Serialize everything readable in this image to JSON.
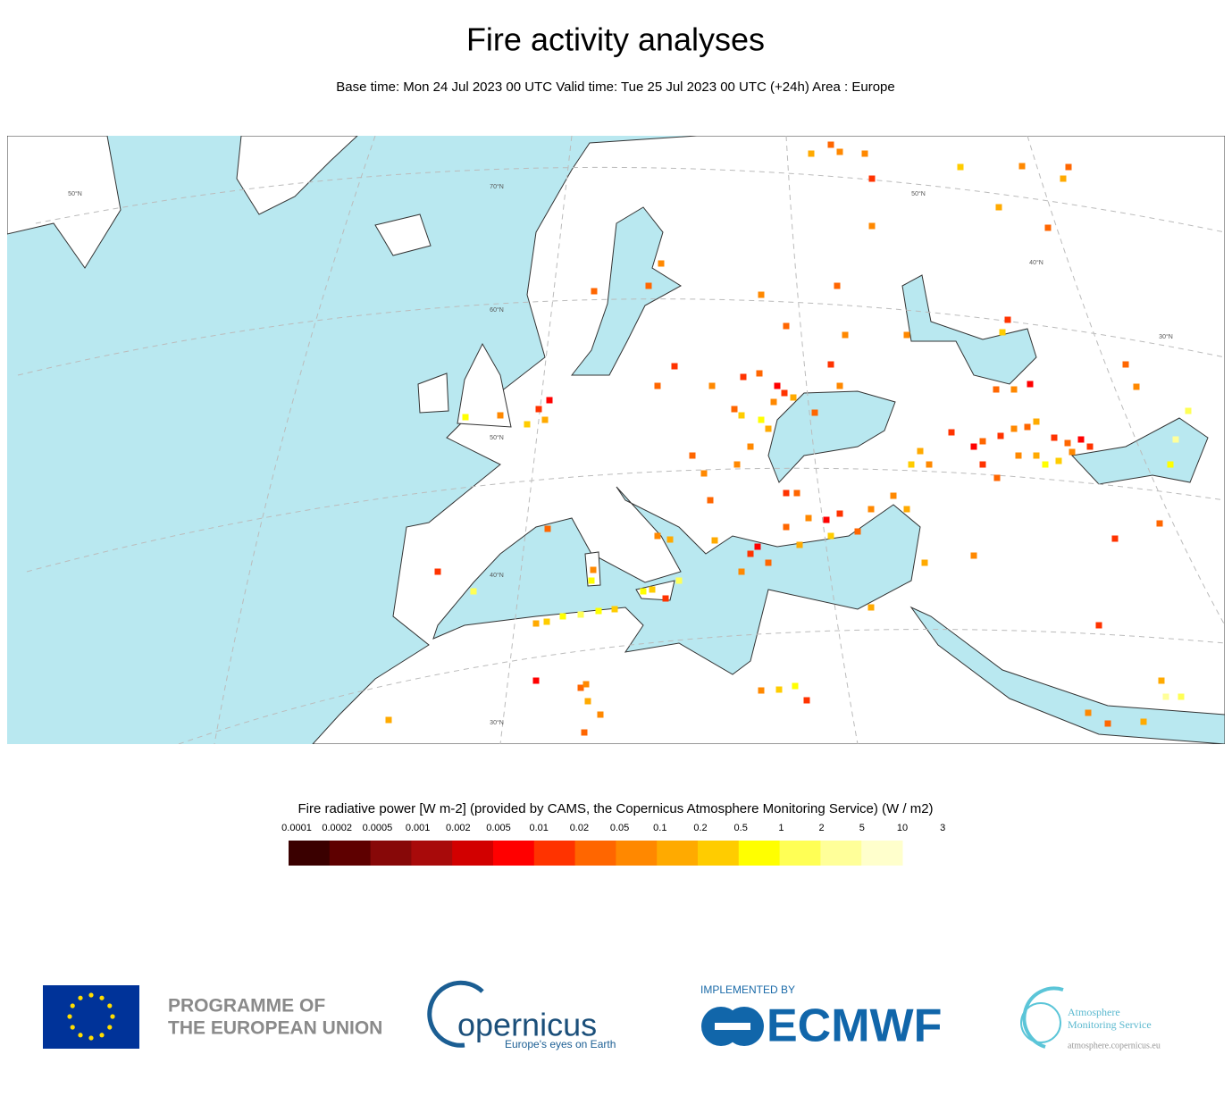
{
  "header": {
    "title": "Fire activity analyses",
    "subtitle": "Base time: Mon 24 Jul 2023 00 UTC Valid time: Tue 25 Jul 2023 00 UTC (+24h) Area : Europe"
  },
  "map": {
    "grid_labels": [
      "50°N",
      "70°N",
      "60°N",
      "50°N",
      "40°N",
      "30°N",
      "50°N",
      "40°N",
      "30°N"
    ]
  },
  "legend": {
    "title": "Fire radiative power [W m-2] (provided by CAMS, the Copernicus Atmosphere Monitoring Service) (W / m2)",
    "labels": [
      "0.0001",
      "0.0002",
      "0.0005",
      "0.001",
      "0.002",
      "0.005",
      "0.01",
      "0.02",
      "0.05",
      "0.1",
      "0.2",
      "0.5",
      "1",
      "2",
      "5",
      "10",
      "3"
    ],
    "colors": [
      "#3a0000",
      "#5e0000",
      "#870808",
      "#a80a0a",
      "#d20000",
      "#ff0000",
      "#ff3300",
      "#ff6600",
      "#ff8800",
      "#ffaa00",
      "#ffcc00",
      "#ffff00",
      "#ffff55",
      "#ffff99",
      "#ffffcc"
    ]
  },
  "footer": {
    "eu_line1": "PROGRAMME OF",
    "eu_line2": "THE EUROPEAN UNION",
    "copernicus": "opernicus",
    "copernicus_tagline": "Europe's eyes on Earth",
    "implemented_by": "IMPLEMENTED BY",
    "ecmwf": "ECMWF",
    "cams_line1": "Atmosphere",
    "cams_line2": "Monitoring Service",
    "cams_url": "atmosphere.copernicus.eu"
  }
}
